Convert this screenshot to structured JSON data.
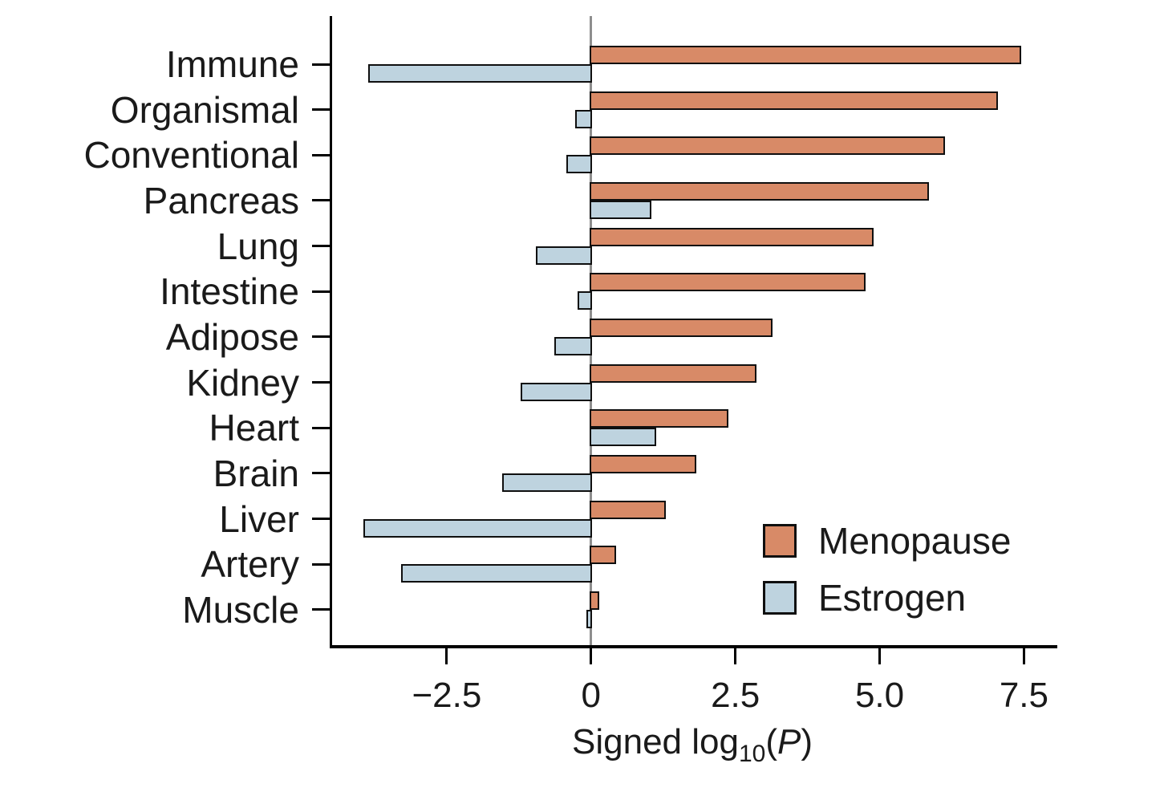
{
  "figure": {
    "background": "#ffffff",
    "axis_color": "#000000",
    "zero_line_color": "#8e8e8e",
    "bar_border_color": "#0f0f0f"
  },
  "chart_data": {
    "type": "bar",
    "orientation": "horizontal",
    "title": "",
    "xlabel": "Signed log10(P)",
    "xlabel_parts": {
      "lead": "Signed log",
      "sub": "10",
      "open": "(",
      "pvar": "P",
      "close": ")"
    },
    "ylabel": "",
    "categories": [
      "Immune",
      "Organismal",
      "Conventional",
      "Pancreas",
      "Lung",
      "Intestine",
      "Adipose",
      "Kidney",
      "Heart",
      "Brain",
      "Liver",
      "Artery",
      "Muscle"
    ],
    "series": [
      {
        "name": "Menopause",
        "color": "#d88a67",
        "values": [
          7.45,
          7.05,
          6.13,
          5.85,
          4.9,
          4.76,
          3.14,
          2.86,
          2.38,
          1.82,
          1.3,
          0.43,
          0.14
        ]
      },
      {
        "name": "Estrogen",
        "color": "#bed3df",
        "values": [
          -3.86,
          -0.27,
          -0.43,
          1.04,
          -0.96,
          -0.24,
          -0.64,
          -1.22,
          1.13,
          -1.54,
          -3.94,
          -3.29,
          -0.08
        ]
      }
    ],
    "x_ticks": [
      {
        "value": -2.5,
        "label": "−2.5"
      },
      {
        "value": 0,
        "label": "0"
      },
      {
        "value": 2.5,
        "label": "2.5"
      },
      {
        "value": 5.0,
        "label": "5.0"
      },
      {
        "value": 7.5,
        "label": "7.5"
      }
    ],
    "xlim": [
      -4.5,
      8.05
    ],
    "grid": "off",
    "legend_position": "lower-right",
    "legend": {
      "entries": [
        {
          "label": "Menopause",
          "color": "#d88a67"
        },
        {
          "label": "Estrogen",
          "color": "#bed3df"
        }
      ]
    }
  }
}
